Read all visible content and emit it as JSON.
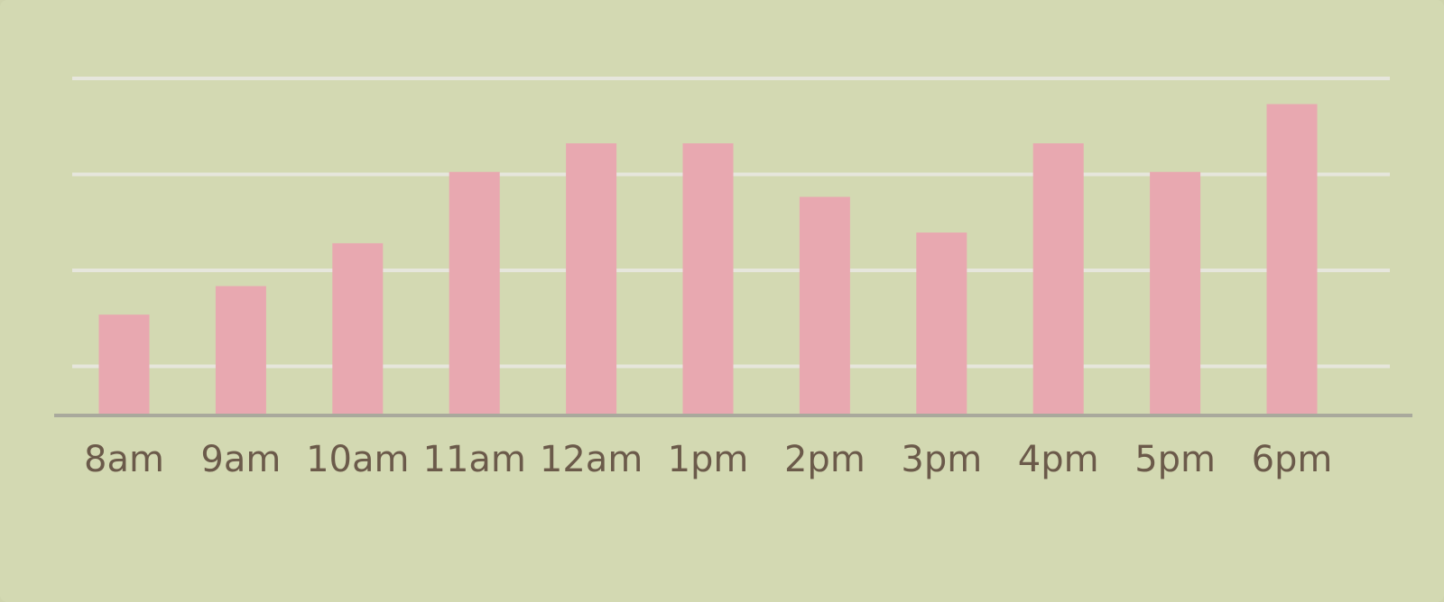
{
  "chart_data": {
    "type": "bar",
    "title": "",
    "xlabel": "",
    "ylabel": "",
    "categories": [
      "8am",
      "9am",
      "10am",
      "11am",
      "12am",
      "1pm",
      "2pm",
      "3pm",
      "4pm",
      "5pm",
      "6pm"
    ],
    "values": [
      28,
      36,
      48,
      68,
      76,
      76,
      61,
      51,
      76,
      68,
      87
    ],
    "ylim": [
      0,
      96
    ],
    "gridlines": [
      13.5,
      40.4,
      67.3,
      94.2
    ],
    "grid": true,
    "y_tick_labels_visible": false,
    "colors": {
      "background": "#d3d9b2",
      "bar": "#e8a8b0",
      "grid": "#e6e6dc",
      "axis": "#a9a99c",
      "tick_label": "#6b5a4a"
    }
  }
}
